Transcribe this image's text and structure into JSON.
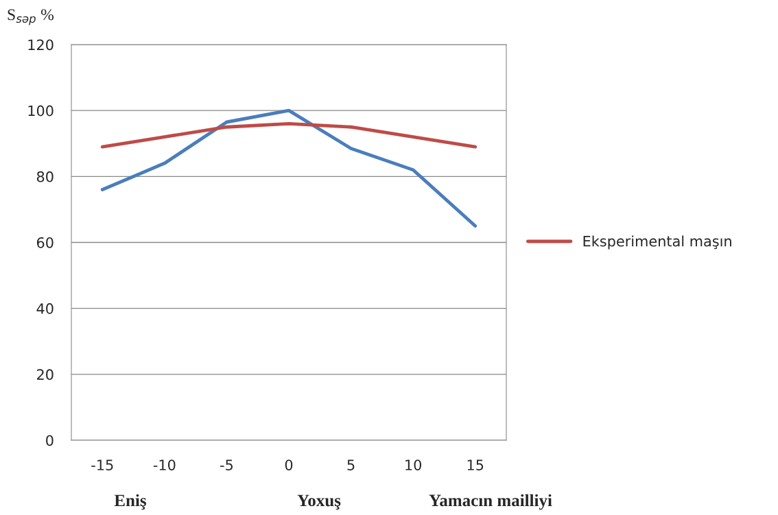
{
  "chart_data": {
    "type": "line",
    "ylabel": "S$_{səp}$ %",
    "categories": [
      "-15",
      "-10",
      "-5",
      "0",
      "5",
      "10",
      "15"
    ],
    "series": [
      {
        "color": "#4a7ebb",
        "values": [
          76,
          84,
          96.5,
          100,
          88.5,
          82,
          65
        ]
      },
      {
        "name": "Eksperimental maşın",
        "color": "#be4b48",
        "values": [
          89,
          92,
          95,
          96,
          95,
          92,
          89
        ]
      }
    ],
    "ylim": [
      0,
      120
    ],
    "yticks": [
      0,
      20,
      40,
      60,
      80,
      100,
      120
    ],
    "grid": "y",
    "legend": "right",
    "marker": "none",
    "line_style": "solid",
    "annotations": [
      "Eniş",
      "Yoxuş",
      "Yamacın mailliyi"
    ]
  }
}
